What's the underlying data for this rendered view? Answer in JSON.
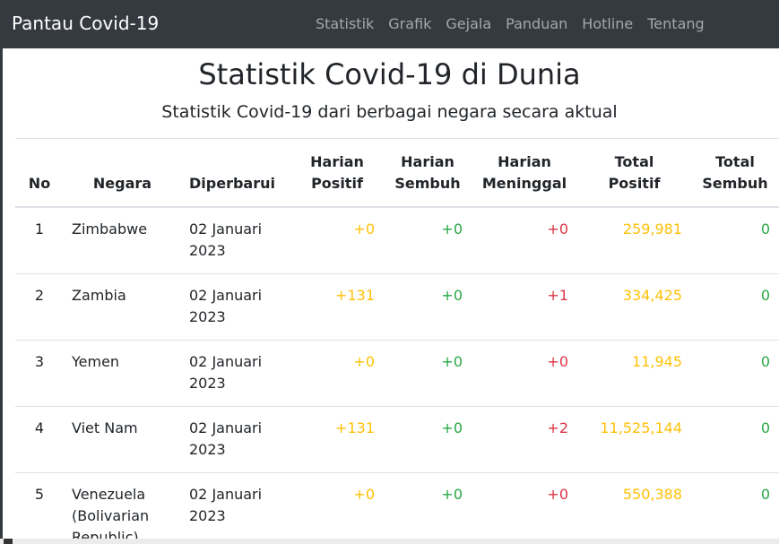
{
  "navbar": {
    "brand": "Pantau Covid-19",
    "links": [
      "Statistik",
      "Grafik",
      "Gejala",
      "Panduan",
      "Hotline",
      "Tentang"
    ]
  },
  "page": {
    "title": "Statistik Covid-19 di Dunia",
    "subtitle": "Statistik Covid-19 dari berbagai negara secara aktual"
  },
  "table": {
    "headers": {
      "no": "No",
      "negara": "Negara",
      "diperbarui": "Diperbarui",
      "harian_positif_1": "Harian",
      "harian_positif_2": "Positif",
      "harian_sembuh_1": "Harian",
      "harian_sembuh_2": "Sembuh",
      "harian_meninggal_1": "Harian",
      "harian_meninggal_2": "Meninggal",
      "total_positif_1": "Total",
      "total_positif_2": "Positif",
      "total_sembuh_1": "Total",
      "total_sembuh_2": "Sembuh"
    },
    "rows": [
      {
        "no": "1",
        "negara": "Zimbabwe",
        "diperbarui": "02 Januari 2023",
        "harian_positif": "+0",
        "harian_sembuh": "+0",
        "harian_meninggal": "+0",
        "total_positif": "259,981",
        "total_sembuh": "0"
      },
      {
        "no": "2",
        "negara": "Zambia",
        "diperbarui": "02 Januari 2023",
        "harian_positif": "+131",
        "harian_sembuh": "+0",
        "harian_meninggal": "+1",
        "total_positif": "334,425",
        "total_sembuh": "0"
      },
      {
        "no": "3",
        "negara": "Yemen",
        "diperbarui": "02 Januari 2023",
        "harian_positif": "+0",
        "harian_sembuh": "+0",
        "harian_meninggal": "+0",
        "total_positif": "11,945",
        "total_sembuh": "0"
      },
      {
        "no": "4",
        "negara": "Viet Nam",
        "diperbarui": "02 Januari 2023",
        "harian_positif": "+131",
        "harian_sembuh": "+0",
        "harian_meninggal": "+2",
        "total_positif": "11,525,144",
        "total_sembuh": "0"
      },
      {
        "no": "5",
        "negara": "Venezuela (Bolivarian Republic)",
        "diperbarui": "02 Januari 2023",
        "harian_positif": "+0",
        "harian_sembuh": "+0",
        "harian_meninggal": "+0",
        "total_positif": "550,388",
        "total_sembuh": "0"
      }
    ]
  },
  "colors": {
    "navbar_bg": "#343a40",
    "positive": "#ffc107",
    "recovered": "#28a745",
    "death": "#dc3545"
  }
}
